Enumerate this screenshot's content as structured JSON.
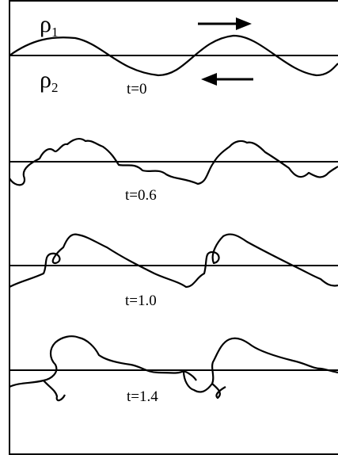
{
  "density_labels": [
    {
      "symbol": "ρ",
      "subscript": "1"
    },
    {
      "symbol": "ρ",
      "subscript": "2"
    }
  ],
  "time_labels": [
    "t=0",
    "t=0.6",
    "t=1.0",
    "t=1.4"
  ]
}
